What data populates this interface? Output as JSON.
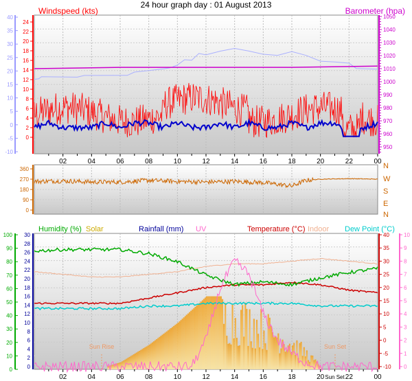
{
  "title": "24 hour graph day : 01 August 2013",
  "colors": {
    "wind": "#ff0000",
    "gust_bg": "#ffaaaa",
    "avg": "#0000cc",
    "temp_c_axis": "#9999ff",
    "baro": "#cc00cc",
    "baro_axis": "#a0a0ff",
    "dir": "#cc6600",
    "humidity": "#00aa00",
    "solar": "#ffcc44",
    "rain": "#000099",
    "uv": "#ff66cc",
    "temperature": "#cc0000",
    "indoor": "#f0b090",
    "dew": "#00cccc"
  },
  "x_ticks": [
    "02",
    "04",
    "06",
    "08",
    "10",
    "12",
    "14",
    "16",
    "18",
    "20",
    "22",
    "00"
  ],
  "panel1": {
    "left_title": "Windspeed (kts)",
    "right_title": "Barometer (hpa)",
    "left_outer_ticks": [
      "40",
      "35",
      "30",
      "25",
      "20",
      "15",
      "10",
      "5",
      "0",
      "-5",
      "-10"
    ],
    "left_inner_ticks": [
      "24",
      "22",
      "20",
      "18",
      "16",
      "14",
      "12",
      "10",
      "8",
      "6",
      "4",
      "2",
      "0"
    ],
    "left_inner_extra": [
      "0",
      "-5"
    ],
    "right_ticks": [
      "1050",
      "1040",
      "1030",
      "1020",
      "1010",
      "1000",
      "990",
      "980",
      "970",
      "960",
      "950"
    ]
  },
  "panel2": {
    "left_ticks": [
      "360",
      "270",
      "180",
      "90",
      "0"
    ],
    "right_labels": [
      "N",
      "W",
      "S",
      "E",
      "N"
    ]
  },
  "panel3": {
    "legend": {
      "humidity": "Humidity (%)",
      "solar": "Solar",
      "rainfall": "Rainfall (mm)",
      "uv": "UV",
      "temperature": "Temperature (°C)",
      "indoor": "Indoor",
      "dew": "Dew Point (°C)"
    },
    "humidity_ticks": [
      "100",
      "90",
      "80",
      "70",
      "60",
      "50",
      "40",
      "30",
      "20",
      "10",
      "0"
    ],
    "rain_ticks": [
      "30",
      "28",
      "26",
      "24",
      "22",
      "20",
      "18",
      "16",
      "14",
      "12",
      "10",
      "8",
      "6",
      "4",
      "2",
      "0"
    ],
    "temp_ticks": [
      "40",
      "35",
      "30",
      "25",
      "20",
      "15",
      "10",
      "5",
      "0",
      "-5",
      "-10"
    ],
    "uv_ticks": [
      "10",
      "9",
      "8",
      "7",
      "6",
      "5",
      "4",
      "3",
      "2",
      "1",
      "0"
    ],
    "sunrise_label": "Sun Rise",
    "sunset_label": "Sun Set",
    "x_ticks_sun": [
      "02",
      "04",
      "06",
      "08",
      "10",
      "12",
      "14",
      "16",
      "18",
      "20",
      "Sun Set",
      "22",
      "00"
    ]
  },
  "chart_data": [
    {
      "type": "line",
      "title": "24 hour graph day : 01 August 2013",
      "x_unit": "hour",
      "series": [
        {
          "name": "Windspeed (kts)",
          "x": [
            0,
            1,
            2,
            3,
            4,
            5,
            6,
            7,
            8,
            9,
            10,
            11,
            12,
            13,
            14,
            15,
            16,
            17,
            18,
            19,
            20,
            21,
            22,
            23,
            24
          ],
          "values": [
            2,
            3,
            2,
            2,
            2,
            3,
            2,
            3,
            3,
            2,
            3,
            2,
            2,
            3,
            2,
            3,
            2,
            2,
            3,
            2,
            3,
            3,
            1,
            2,
            3
          ]
        },
        {
          "name": "Barometer (hpa)",
          "x": [
            0,
            6,
            12,
            18,
            24
          ],
          "values": [
            1010,
            1011,
            1011,
            1011,
            1012
          ]
        }
      ]
    },
    {
      "type": "line",
      "series": [
        {
          "name": "Wind direction",
          "x": [
            0,
            2,
            4,
            6,
            8,
            10,
            12,
            14,
            16,
            18,
            19,
            20,
            22,
            24
          ],
          "values": [
            250,
            255,
            245,
            245,
            260,
            250,
            245,
            250,
            240,
            210,
            260,
            270,
            275,
            270
          ]
        }
      ]
    },
    {
      "type": "line",
      "series": [
        {
          "name": "Humidity (%)",
          "x": [
            0,
            2,
            4,
            6,
            8,
            10,
            12,
            14,
            16,
            18,
            20,
            22,
            24
          ],
          "values": [
            88,
            89,
            89,
            89,
            86,
            80,
            70,
            63,
            65,
            63,
            68,
            72,
            75
          ]
        },
        {
          "name": "Temperature (°C)",
          "x": [
            0,
            2,
            4,
            6,
            8,
            10,
            12,
            14,
            16,
            18,
            20,
            22,
            24
          ],
          "values": [
            14,
            14,
            14,
            14,
            16,
            18,
            20,
            21,
            21,
            22,
            21,
            19,
            18
          ]
        },
        {
          "name": "Dew Point (°C)",
          "x": [
            0,
            2,
            4,
            6,
            8,
            10,
            12,
            14,
            16,
            18,
            20,
            22,
            24
          ],
          "values": [
            12,
            12,
            12,
            12,
            13,
            13,
            14,
            14,
            14,
            14,
            13,
            13,
            13
          ]
        },
        {
          "name": "Indoor",
          "x": [
            0,
            2,
            4,
            6,
            8,
            10,
            12,
            14,
            16,
            18,
            20,
            22,
            24
          ],
          "values": [
            26,
            25,
            24,
            24,
            25,
            26,
            28,
            29,
            29,
            30,
            31,
            30,
            29
          ]
        },
        {
          "name": "Solar",
          "x": [
            0,
            5,
            6,
            8,
            10,
            12,
            13,
            14,
            15,
            16,
            17,
            18,
            19,
            20,
            24
          ],
          "values": [
            0,
            0,
            1,
            5,
            10,
            16,
            16,
            15,
            14,
            12,
            10,
            7,
            4,
            0,
            0
          ]
        },
        {
          "name": "UV",
          "x": [
            0,
            11,
            12,
            13,
            14,
            15,
            16,
            17,
            18,
            19,
            20,
            24
          ],
          "values": [
            0,
            0,
            2,
            6,
            8,
            7,
            4,
            2,
            1,
            0.3,
            0,
            0
          ]
        }
      ]
    }
  ]
}
